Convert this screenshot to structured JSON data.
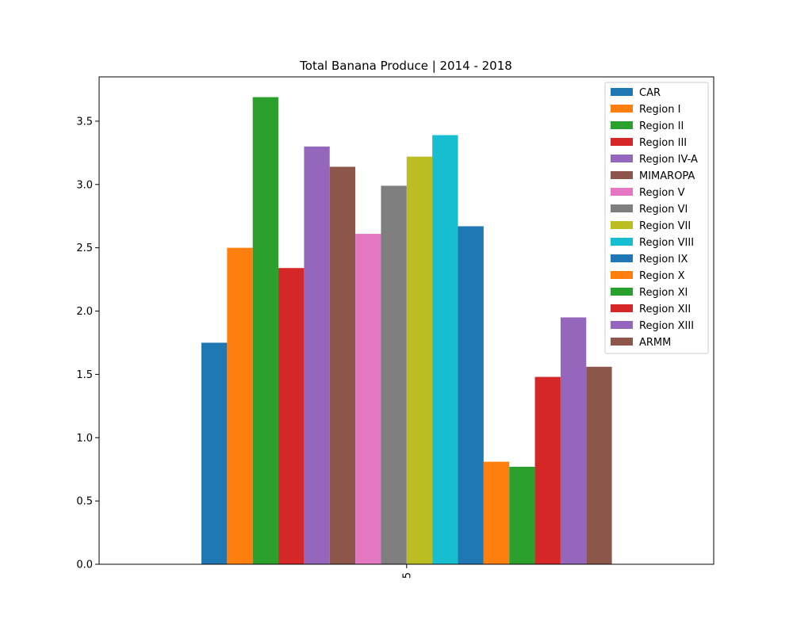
{
  "chart_data": {
    "type": "bar",
    "title": "Total Banana Produce | 2014 - 2018",
    "xlabel": "",
    "ylabel": "",
    "categories": [
      "5"
    ],
    "ylim": [
      0,
      3.85
    ],
    "yticks": [
      "0.0",
      "0.5",
      "1.0",
      "1.5",
      "2.0",
      "2.5",
      "3.0",
      "3.5"
    ],
    "grid": false,
    "legend_position": "top-right",
    "series": [
      {
        "name": "CAR",
        "values": [
          1.75
        ],
        "color": "#1f77b4"
      },
      {
        "name": "Region I",
        "values": [
          2.5
        ],
        "color": "#ff7f0e"
      },
      {
        "name": "Region II",
        "values": [
          3.69
        ],
        "color": "#2ca02c"
      },
      {
        "name": "Region III",
        "values": [
          2.34
        ],
        "color": "#d62728"
      },
      {
        "name": "Region IV-A",
        "values": [
          3.3
        ],
        "color": "#9467bd"
      },
      {
        "name": "MIMAROPA",
        "values": [
          3.14
        ],
        "color": "#8c564b"
      },
      {
        "name": "Region V",
        "values": [
          2.61
        ],
        "color": "#e377c2"
      },
      {
        "name": "Region VI",
        "values": [
          2.99
        ],
        "color": "#7f7f7f"
      },
      {
        "name": "Region VII",
        "values": [
          3.22
        ],
        "color": "#bcbd22"
      },
      {
        "name": "Region VIII",
        "values": [
          3.39
        ],
        "color": "#17becf"
      },
      {
        "name": "Region IX",
        "values": [
          2.67
        ],
        "color": "#1f77b4"
      },
      {
        "name": "Region X",
        "values": [
          0.81
        ],
        "color": "#ff7f0e"
      },
      {
        "name": "Region XI",
        "values": [
          0.77
        ],
        "color": "#2ca02c"
      },
      {
        "name": "Region XII",
        "values": [
          1.48
        ],
        "color": "#d62728"
      },
      {
        "name": "Region XIII",
        "values": [
          1.95
        ],
        "color": "#9467bd"
      },
      {
        "name": "ARMM",
        "values": [
          1.56
        ],
        "color": "#8c564b"
      }
    ]
  }
}
